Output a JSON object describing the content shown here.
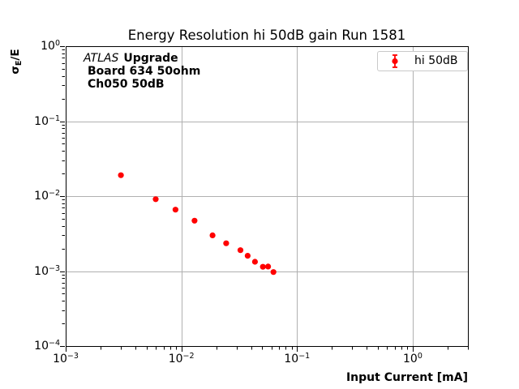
{
  "title": "Energy Resolution hi 50dB gain Run 1581",
  "axes": {
    "xlabel": "Input Current [mA]",
    "ylabel_sigma": "σ",
    "ylabel_sub": "E",
    "ylabel_rest": "/E"
  },
  "annotation": {
    "line1_italic": "ATLAS",
    "line1_bold": "Upgrade",
    "line2": "Board 634 50ohm",
    "line3": "Ch050 50dB"
  },
  "legend": {
    "label": "hi 50dB",
    "marker": "errorbar-circle",
    "position": "upper right"
  },
  "colors": {
    "marker": "#ff0000",
    "grid": "#b0b0b0",
    "spine": "#000000",
    "legend_border": "#c9c9c9",
    "background": "#ffffff"
  },
  "chart_data": {
    "type": "scatter",
    "title": "Energy Resolution hi 50dB gain Run 1581",
    "xlabel": "Input Current [mA]",
    "ylabel": "σE/E",
    "x_scale": "log",
    "y_scale": "log",
    "xlim": [
      0.001,
      3.0
    ],
    "ylim": [
      0.0001,
      1.0
    ],
    "xtick_exponents": [
      -3,
      -2,
      -1,
      0
    ],
    "ytick_exponents": [
      0,
      -1,
      -2,
      -3,
      -4
    ],
    "grid": true,
    "legend_position": "upper right",
    "series": [
      {
        "name": "hi 50dB",
        "color": "#ff0000",
        "marker": "circle",
        "x": [
          0.003,
          0.006,
          0.0089,
          0.013,
          0.0186,
          0.0244,
          0.0324,
          0.0374,
          0.0433,
          0.0507,
          0.0562,
          0.0625
        ],
        "y": [
          0.019,
          0.0091,
          0.0066,
          0.0047,
          0.003,
          0.00235,
          0.0019,
          0.0016,
          0.00133,
          0.00114,
          0.00115,
          0.00097
        ]
      }
    ]
  }
}
